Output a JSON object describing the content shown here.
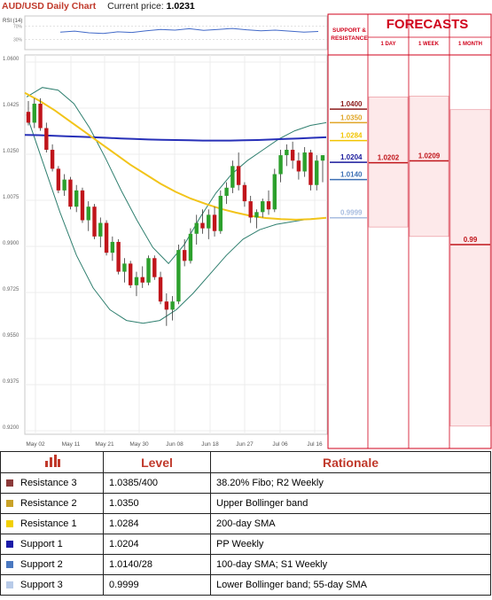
{
  "header": {
    "title": "AUD/USD Daily Chart",
    "current_price_label": "Current price:",
    "current_price": "1.0231"
  },
  "rsi": {
    "label": "RSI (14)",
    "ticks": [
      "70%",
      "30%"
    ]
  },
  "forecast_panel": {
    "title": "FORECASTS",
    "sr_heading": [
      "SUPPORT &",
      "RESISTANCE"
    ],
    "columns": [
      "1 DAY",
      "1 WEEK",
      "1 MONTH"
    ],
    "values": [
      "1.0202",
      "1.0209",
      "0.99"
    ],
    "ranges": [
      [
        0.9965,
        1.0445
      ],
      [
        0.993,
        1.0448
      ],
      [
        0.923,
        1.0398
      ]
    ]
  },
  "levels_on_chart": [
    {
      "value": "1.0400",
      "color": "#8b1a1a"
    },
    {
      "value": "1.0350",
      "color": "#e0a526"
    },
    {
      "value": "1.0284",
      "color": "#f2c400"
    },
    {
      "value": "1.0204",
      "color": "#1a1a9c"
    },
    {
      "value": "1.0140",
      "color": "#3c6fb4"
    },
    {
      "value": "0.9999",
      "color": "#a8bde0"
    }
  ],
  "table": {
    "level_header": "Level",
    "rationale_header": "Rationale",
    "rows": [
      {
        "name": "Resistance 3",
        "level": "1.0385/400",
        "rationale": "38.20% Fibo; R2 Weekly",
        "color": "#8b3a3a"
      },
      {
        "name": "Resistance 2",
        "level": "1.0350",
        "rationale": "Upper Bollinger band",
        "color": "#c9a227"
      },
      {
        "name": "Resistance 1",
        "level": "1.0284",
        "rationale": "200-day SMA",
        "color": "#f2d000"
      },
      {
        "name": "Support 1",
        "level": "1.0204",
        "rationale": "PP Weekly",
        "color": "#1a1aa8"
      },
      {
        "name": "Support 2",
        "level": "1.0140/28",
        "rationale": "100-day SMA; S1 Weekly",
        "color": "#4a78c0"
      },
      {
        "name": "Support 3",
        "level": "0.9999",
        "rationale": "Lower Bollinger band; 55-day SMA",
        "color": "#b8cbe8"
      }
    ]
  },
  "chart_data": {
    "type": "candlestick",
    "title": "AUD/USD Daily Chart",
    "x_tick_labels": [
      "May 02",
      "May 11",
      "May 21",
      "May 30",
      "Jun 08",
      "Jun 18",
      "Jun 27",
      "Jul 06",
      "Jul 16"
    ],
    "y_tick_labels": [
      "1.0600",
      "1.0425",
      "1.0250",
      "1.0075",
      "0.9900",
      "0.9725",
      "0.9550",
      "0.9375",
      "0.9200"
    ],
    "ylim": [
      0.92,
      1.06
    ],
    "candles": [
      [
        1.039,
        1.043,
        1.034,
        1.035
      ],
      [
        1.035,
        1.044,
        1.033,
        1.042
      ],
      [
        1.042,
        1.044,
        1.032,
        1.033
      ],
      [
        1.033,
        1.035,
        1.024,
        1.025
      ],
      [
        1.025,
        1.027,
        1.017,
        1.018
      ],
      [
        1.018,
        1.019,
        1.009,
        1.01
      ],
      [
        1.01,
        1.016,
        1.008,
        1.014
      ],
      [
        1.014,
        1.015,
        1.003,
        1.004
      ],
      [
        1.004,
        1.012,
        1.002,
        1.01
      ],
      [
        1.01,
        1.011,
        0.998,
        0.999
      ],
      [
        0.999,
        1.006,
        0.995,
        1.004
      ],
      [
        1.004,
        1.005,
        0.992,
        0.993
      ],
      [
        0.993,
        1.0,
        0.989,
        0.998
      ],
      [
        0.998,
        0.999,
        0.986,
        0.987
      ],
      [
        0.987,
        0.993,
        0.984,
        0.991
      ],
      [
        0.991,
        0.992,
        0.979,
        0.98
      ],
      [
        0.98,
        0.985,
        0.976,
        0.983
      ],
      [
        0.983,
        0.984,
        0.974,
        0.975
      ],
      [
        0.975,
        0.98,
        0.971,
        0.978
      ],
      [
        0.978,
        0.982,
        0.974,
        0.976
      ],
      [
        0.976,
        0.986,
        0.975,
        0.985
      ],
      [
        0.985,
        0.986,
        0.977,
        0.978
      ],
      [
        0.978,
        0.98,
        0.968,
        0.969
      ],
      [
        0.969,
        0.972,
        0.96,
        0.966
      ],
      [
        0.966,
        0.971,
        0.962,
        0.969
      ],
      [
        0.969,
        0.99,
        0.968,
        0.988
      ],
      [
        0.988,
        0.992,
        0.982,
        0.984
      ],
      [
        0.984,
        0.996,
        0.983,
        0.994
      ],
      [
        0.994,
        1.001,
        0.99,
        0.998
      ],
      [
        0.998,
        1.003,
        0.994,
        0.996
      ],
      [
        0.996,
        1.003,
        0.992,
        1.001
      ],
      [
        1.001,
        1.004,
        0.993,
        0.995
      ],
      [
        0.995,
        1.01,
        0.994,
        1.008
      ],
      [
        1.008,
        1.013,
        1.005,
        1.011
      ],
      [
        1.011,
        1.021,
        1.009,
        1.019
      ],
      [
        1.019,
        1.024,
        1.01,
        1.012
      ],
      [
        1.012,
        1.013,
        1.004,
        1.006
      ],
      [
        1.006,
        1.008,
        0.998,
        1.0
      ],
      [
        1.0,
        1.003,
        0.996,
        1.002
      ],
      [
        1.002,
        1.007,
        1.0,
        1.006
      ],
      [
        1.006,
        1.01,
        1.001,
        1.003
      ],
      [
        1.003,
        1.018,
        1.002,
        1.016
      ],
      [
        1.016,
        1.025,
        1.013,
        1.023
      ],
      [
        1.023,
        1.027,
        1.019,
        1.025
      ],
      [
        1.025,
        1.028,
        1.018,
        1.021
      ],
      [
        1.021,
        1.024,
        1.014,
        1.017
      ],
      [
        1.017,
        1.026,
        1.015,
        1.024
      ],
      [
        1.024,
        1.025,
        1.01,
        1.012
      ],
      [
        1.012,
        1.023,
        1.01,
        1.021
      ],
      [
        1.021,
        1.023,
        1.013,
        1.023
      ]
    ],
    "sma_200": [
      1.0305,
      1.0304,
      1.0302,
      1.03,
      1.0298,
      1.0296,
      1.0294,
      1.0292,
      1.029,
      1.0288,
      1.0287,
      1.0286,
      1.0285,
      1.0284,
      1.0284,
      1.0284,
      1.0285,
      1.0286,
      1.0288,
      1.029,
      1.0292,
      1.0294,
      1.0296
    ],
    "sma_55": [
      1.046,
      1.043,
      1.0395,
      1.0355,
      1.0315,
      1.0275,
      1.0235,
      1.0195,
      1.016,
      1.0125,
      1.0095,
      1.007,
      1.005,
      1.0032,
      1.0018,
      1.0006,
      0.9998,
      0.9994,
      0.9992,
      0.9994,
      0.9999
    ],
    "bb_upper": [
      1.0445,
      1.048,
      1.047,
      1.042,
      1.033,
      1.022,
      1.01,
      0.999,
      0.989,
      0.983,
      0.99,
      1.0,
      1.009,
      1.016,
      1.021,
      1.025,
      1.029,
      1.032,
      1.034,
      1.035
    ],
    "bb_lower": [
      1.038,
      1.02,
      1.002,
      0.986,
      0.974,
      0.966,
      0.962,
      0.961,
      0.962,
      0.966,
      0.972,
      0.979,
      0.986,
      0.992,
      0.9955,
      0.9975,
      0.9985,
      0.9995,
      0.9999
    ],
    "rsi_values": [
      52,
      55,
      50,
      48,
      53,
      51,
      56,
      60,
      58,
      62,
      57,
      60,
      63,
      59,
      56,
      58,
      55,
      52,
      54
    ]
  }
}
